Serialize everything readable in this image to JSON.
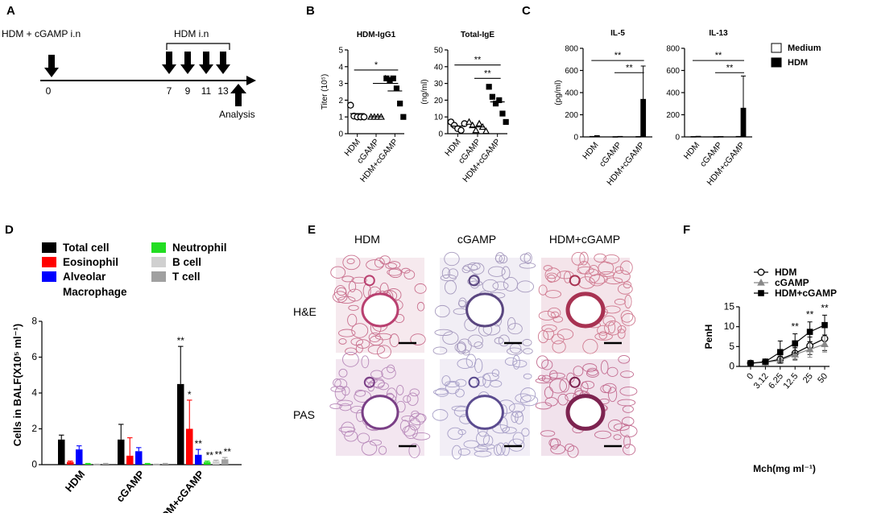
{
  "panels": {
    "A": {
      "letter": "A",
      "left_label": "HDM + cGAMP i.n",
      "bracket_label": "HDM i.n",
      "days": [
        "0",
        "7",
        "9",
        "11",
        "13"
      ],
      "analysis_label": "Analysis"
    },
    "E": {
      "letter": "E",
      "col_labels": [
        "HDM",
        "cGAMP",
        "HDM+cGAMP"
      ],
      "row_labels": [
        "H&E",
        "PAS"
      ]
    }
  },
  "chart_data": [
    {
      "id": "B1",
      "type": "scatter",
      "letter": "B",
      "title": "HDM-IgG1",
      "ylabel": "Titer (10⁵)",
      "categories": [
        "HDM",
        "cGAMP",
        "HDM+cGAMP"
      ],
      "ylim": [
        0,
        5
      ],
      "yticks": [
        "0",
        "1",
        "2",
        "3",
        "4",
        "5"
      ],
      "markers": [
        "circle",
        "triangle",
        "square"
      ],
      "points": [
        [
          1.7,
          1.05,
          1.0,
          1.0,
          1.0
        ],
        [
          1.0,
          1.0,
          1.0,
          1.0
        ],
        [
          3.3,
          3.2,
          3.3,
          2.7,
          1.8,
          1.0
        ]
      ],
      "means": [
        1.2,
        1.0,
        2.55
      ],
      "sig": [
        {
          "from": 0,
          "to": 2,
          "label": "*",
          "y": 3.8
        },
        {
          "from": 1,
          "to": 2,
          "label": "*",
          "y": 3.0
        }
      ]
    },
    {
      "id": "B2",
      "type": "scatter",
      "title": "Total-IgE",
      "ylabel": "(ng/ml)",
      "categories": [
        "HDM",
        "cGAMP",
        "HDM+cGAMP"
      ],
      "ylim": [
        0,
        50
      ],
      "yticks": [
        "0",
        "10",
        "20",
        "30",
        "40",
        "50"
      ],
      "markers": [
        "circle",
        "triangle",
        "square"
      ],
      "points": [
        [
          7,
          5,
          3,
          2,
          6
        ],
        [
          7,
          5,
          2,
          6,
          4,
          1.5
        ],
        [
          28,
          22,
          18,
          20,
          12,
          7
        ]
      ],
      "means": [
        4.5,
        4,
        19
      ],
      "sig": [
        {
          "from": 0,
          "to": 2,
          "label": "**",
          "y": 41
        },
        {
          "from": 1,
          "to": 2,
          "label": "**",
          "y": 33
        }
      ]
    },
    {
      "id": "C1",
      "type": "bar",
      "letter": "C",
      "title": "IL-5",
      "ylabel": "(pg/ml)",
      "categories": [
        "HDM",
        "cGAMP",
        "HDM+cGAMP"
      ],
      "ylim": [
        0,
        800
      ],
      "yticks": [
        "0",
        "200",
        "400",
        "600",
        "800"
      ],
      "series": [
        {
          "name": "Medium",
          "values": [
            5,
            3,
            4
          ],
          "errors": [
            0,
            0,
            0
          ]
        },
        {
          "name": "HDM",
          "values": [
            12,
            5,
            340
          ],
          "errors": [
            0,
            0,
            300
          ]
        }
      ],
      "sig": [
        {
          "from": 0,
          "to": 2,
          "label": "**",
          "y": 690
        },
        {
          "from": 1,
          "to": 2,
          "label": "**",
          "y": 580
        }
      ]
    },
    {
      "id": "C2",
      "type": "bar",
      "title": "IL-13",
      "categories": [
        "HDM",
        "cGAMP",
        "HDM+cGAMP"
      ],
      "ylim": [
        0,
        800
      ],
      "yticks": [
        "0",
        "200",
        "400",
        "600",
        "800"
      ],
      "series": [
        {
          "name": "Medium",
          "values": [
            4,
            3,
            5
          ],
          "errors": [
            0,
            0,
            0
          ]
        },
        {
          "name": "HDM",
          "values": [
            6,
            4,
            260
          ],
          "errors": [
            0,
            0,
            290
          ]
        }
      ],
      "sig": [
        {
          "from": 0,
          "to": 2,
          "label": "**",
          "y": 690
        },
        {
          "from": 1,
          "to": 2,
          "label": "**",
          "y": 580
        }
      ],
      "legend": [
        "Medium",
        "HDM"
      ]
    },
    {
      "id": "D",
      "type": "bar",
      "letter": "D",
      "ylabel": "Cells in BALF(X10⁵ ml⁻¹)",
      "categories": [
        "HDM",
        "cGAMP",
        "HDM+cGAMP"
      ],
      "ylim": [
        0,
        8
      ],
      "yticks": [
        "0",
        "2",
        "4",
        "6",
        "8"
      ],
      "legend_order": [
        "Total cell",
        "Eosinophil",
        "Alveolar Macrophage",
        "Neutrophil",
        "B cell",
        "T cell"
      ],
      "series": [
        {
          "name": "Total cell",
          "color": "#000000",
          "values": [
            1.4,
            1.4,
            4.5
          ],
          "errors": [
            0.25,
            0.85,
            2.1
          ]
        },
        {
          "name": "Eosinophil",
          "color": "#ff0000",
          "values": [
            0.15,
            0.5,
            2.0
          ],
          "errors": [
            0.05,
            1.0,
            1.6
          ]
        },
        {
          "name": "Alveolar Macrophage",
          "color": "#0000ff",
          "values": [
            0.85,
            0.75,
            0.55
          ],
          "errors": [
            0.2,
            0.2,
            0.3
          ]
        },
        {
          "name": "Neutrophil",
          "color": "#22dd22",
          "values": [
            0.05,
            0.05,
            0.15
          ],
          "errors": [
            0.02,
            0.02,
            0.05
          ]
        },
        {
          "name": "B cell",
          "color": "#d0d0d0",
          "values": [
            0.02,
            0.02,
            0.2
          ],
          "errors": [
            0.01,
            0.01,
            0.05
          ]
        },
        {
          "name": "T cell",
          "color": "#a0a0a0",
          "values": [
            0.05,
            0.05,
            0.3
          ],
          "errors": [
            0.02,
            0.02,
            0.1
          ]
        }
      ],
      "sig_labels": [
        "**",
        "*",
        "**",
        "**",
        "**",
        "**"
      ]
    },
    {
      "id": "F",
      "type": "line",
      "letter": "F",
      "xlabel": "Mch(mg ml⁻¹)",
      "ylabel": "PenH",
      "x": [
        "0",
        "3.12",
        "6.25",
        "12.5",
        "25",
        "50"
      ],
      "ylim": [
        0,
        15
      ],
      "yticks": [
        "0",
        "5",
        "10",
        "15"
      ],
      "series": [
        {
          "name": "HDM",
          "marker": "circle-open",
          "values": [
            0.8,
            1.1,
            1.8,
            3.3,
            5.2,
            7.0
          ],
          "errors": [
            0.2,
            0.3,
            0.8,
            1.5,
            2.2,
            3.0
          ]
        },
        {
          "name": "cGAMP",
          "marker": "triangle-gray",
          "values": [
            0.8,
            1.0,
            1.5,
            3.0,
            4.3,
            5.6
          ],
          "errors": [
            0.2,
            0.3,
            0.6,
            1.5,
            2.0,
            2.0
          ]
        },
        {
          "name": "HDM+cGAMP",
          "marker": "square-filled",
          "values": [
            0.8,
            1.2,
            3.6,
            5.8,
            8.7,
            10.4
          ],
          "errors": [
            0.3,
            0.3,
            2.8,
            2.4,
            2.5,
            2.5
          ]
        }
      ],
      "sig": [
        {
          "index": 3,
          "label": "**"
        },
        {
          "index": 4,
          "label": "**"
        },
        {
          "index": 5,
          "label": "**"
        }
      ]
    }
  ]
}
